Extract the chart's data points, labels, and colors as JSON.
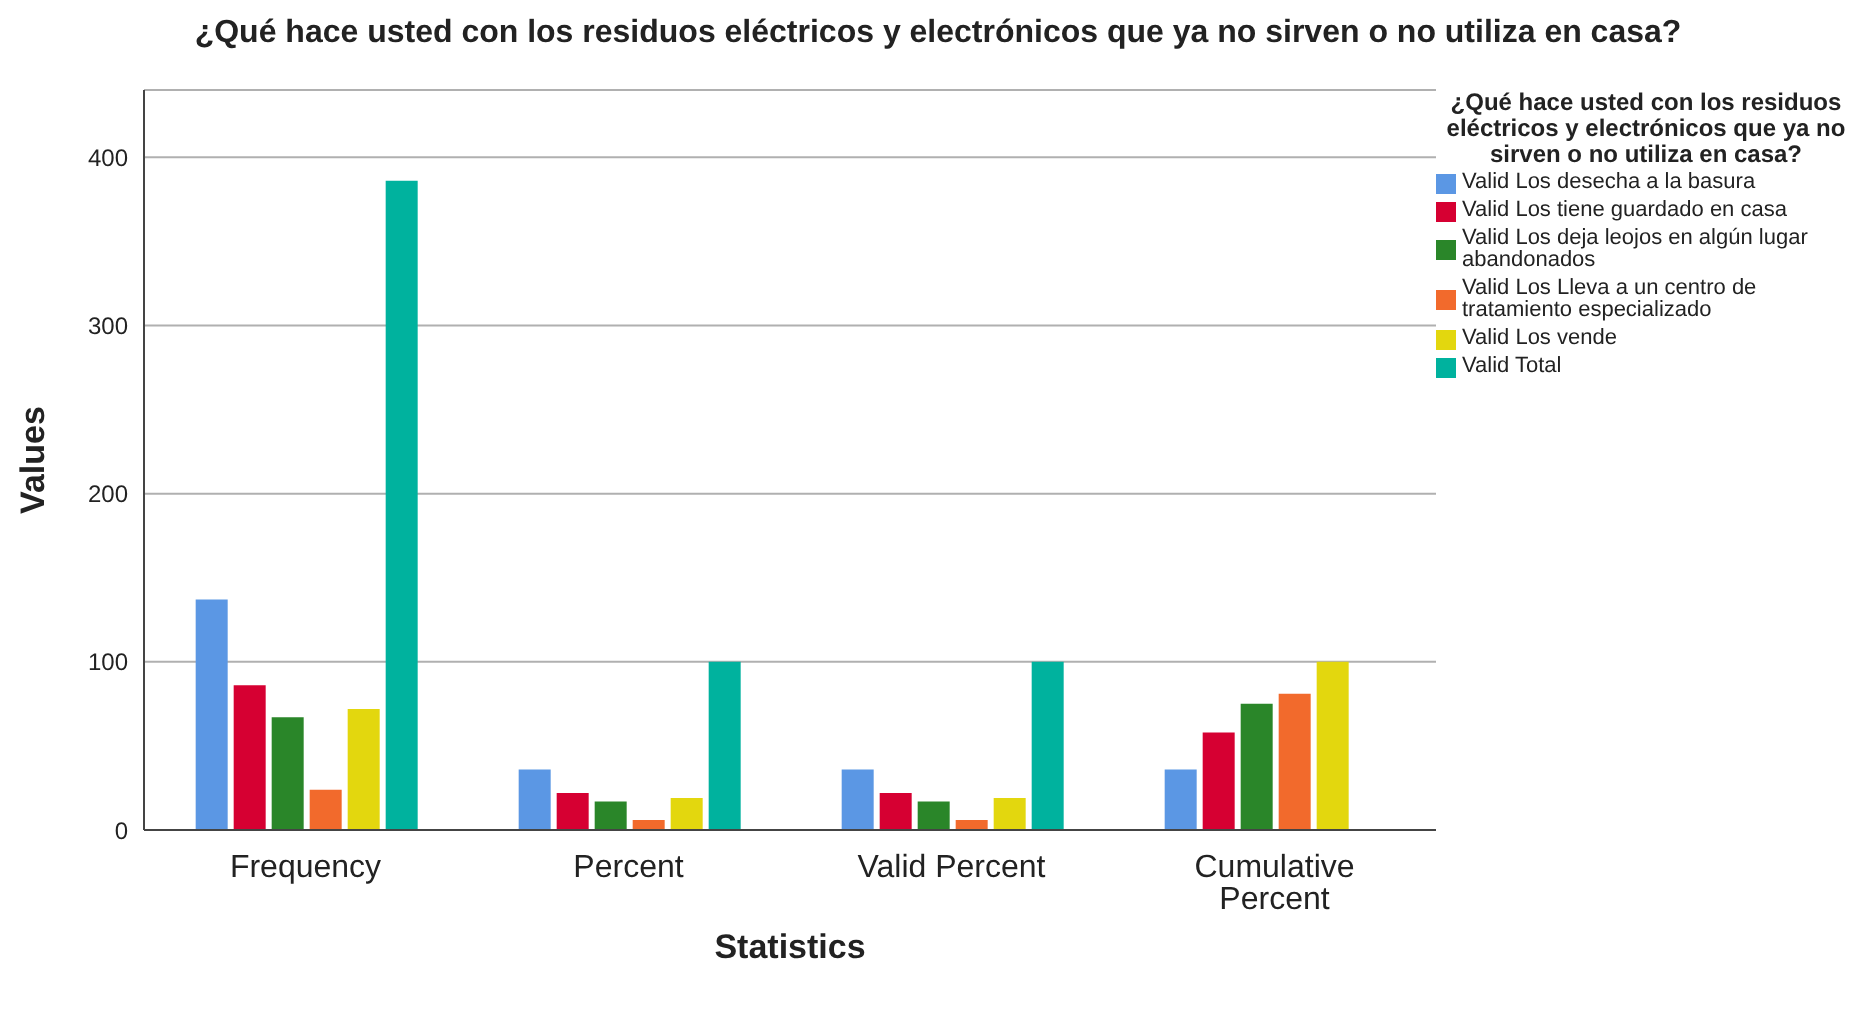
{
  "chart_data": {
    "type": "bar",
    "title": "¿Qué hace usted con los residuos eléctricos y electrónicos que ya no sirven o no utiliza en casa?",
    "xlabel": "Statistics",
    "ylabel": "Values",
    "legend_title": "¿Qué hace usted con los residuos eléctricos y electrónicos que ya no sirven o no utiliza en casa?",
    "categories": [
      "Frequency",
      "Percent",
      "Valid Percent",
      "Cumulative Percent"
    ],
    "series": [
      {
        "name": "Valid Los desecha a la basura",
        "color": "#5b97e4",
        "values": [
          137,
          36,
          36,
          36
        ]
      },
      {
        "name": "Valid Los tiene guardado en casa",
        "color": "#d60032",
        "values": [
          86,
          22,
          22,
          58
        ]
      },
      {
        "name": "Valid Los deja leojos en algún lugar abandonados",
        "color": "#2a8629",
        "values": [
          67,
          17,
          17,
          75
        ]
      },
      {
        "name": "Valid Los Lleva a un centro de tratamiento especializado",
        "color": "#f26a2c",
        "values": [
          24,
          6,
          6,
          81
        ]
      },
      {
        "name": "Valid Los vende",
        "color": "#e3d70e",
        "values": [
          72,
          19,
          19,
          100
        ]
      },
      {
        "name": "Valid Total",
        "color": "#00b29e",
        "values": [
          386,
          100,
          100,
          null
        ]
      }
    ],
    "ylim": [
      0,
      440
    ],
    "yticks": [
      0,
      100,
      200,
      300,
      400
    ],
    "grid": "y",
    "legend": "right"
  }
}
